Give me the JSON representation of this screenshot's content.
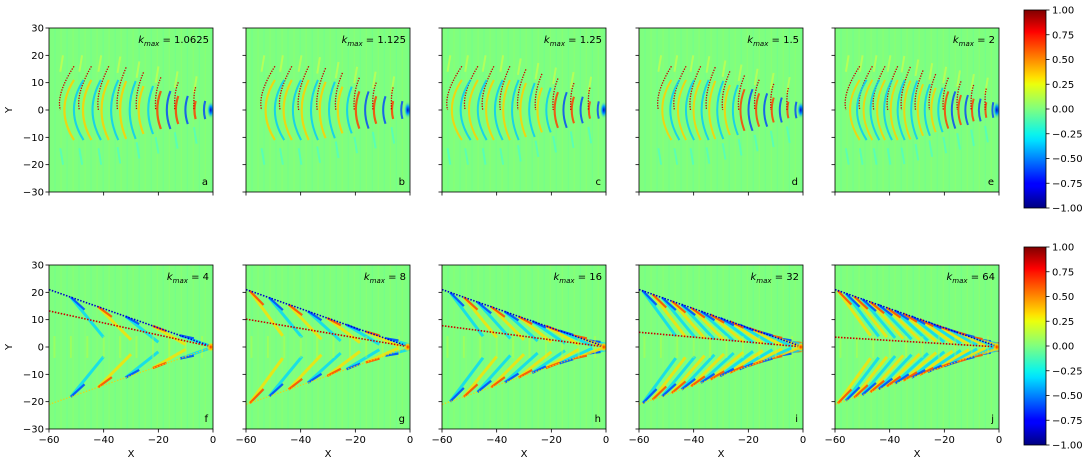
{
  "chart_data": {
    "type": "heatmap",
    "colormap": "jet",
    "colors": {
      "low": "#00007f",
      "mid": "#7fff7f",
      "high": "#7f0000",
      "dot_red": "#cc0000",
      "dot_blue": "#0000cc"
    },
    "xlabel": "X",
    "ylabel": "Y",
    "xlim": [
      -60,
      0
    ],
    "ylim": [
      -30,
      30
    ],
    "xticks": [
      "−60",
      "−40",
      "−20",
      "0"
    ],
    "yticks": [
      "30",
      "20",
      "10",
      "0",
      "−10",
      "−20",
      "−30"
    ],
    "colorbar": {
      "range": [
        -1,
        1
      ],
      "ticks": [
        "1.00",
        "0.75",
        "0.50",
        "0.25",
        "0.00",
        "−0.25",
        "−0.50",
        "−0.75",
        "−1.00"
      ]
    },
    "panels": [
      {
        "letter": "a",
        "k_max": "1.0625",
        "kind": "arc"
      },
      {
        "letter": "b",
        "k_max": "1.125",
        "kind": "arc"
      },
      {
        "letter": "c",
        "k_max": "1.25",
        "kind": "arc"
      },
      {
        "letter": "d",
        "k_max": "1.5",
        "kind": "arc"
      },
      {
        "letter": "e",
        "k_max": "2",
        "kind": "arc"
      },
      {
        "letter": "f",
        "k_max": "4",
        "kind": "wedge",
        "wedge_half_angle_deg": 19.3,
        "inner_red_slope": 0.22
      },
      {
        "letter": "g",
        "k_max": "8",
        "kind": "wedge",
        "wedge_half_angle_deg": 19.3,
        "inner_red_slope": 0.17
      },
      {
        "letter": "h",
        "k_max": "16",
        "kind": "wedge",
        "wedge_half_angle_deg": 19.3,
        "inner_red_slope": 0.13
      },
      {
        "letter": "i",
        "k_max": "32",
        "kind": "wedge",
        "wedge_half_angle_deg": 19.3,
        "inner_red_slope": 0.09
      },
      {
        "letter": "j",
        "k_max": "64",
        "kind": "wedge",
        "wedge_half_angle_deg": 19.3,
        "inner_red_slope": 0.06
      }
    ]
  }
}
